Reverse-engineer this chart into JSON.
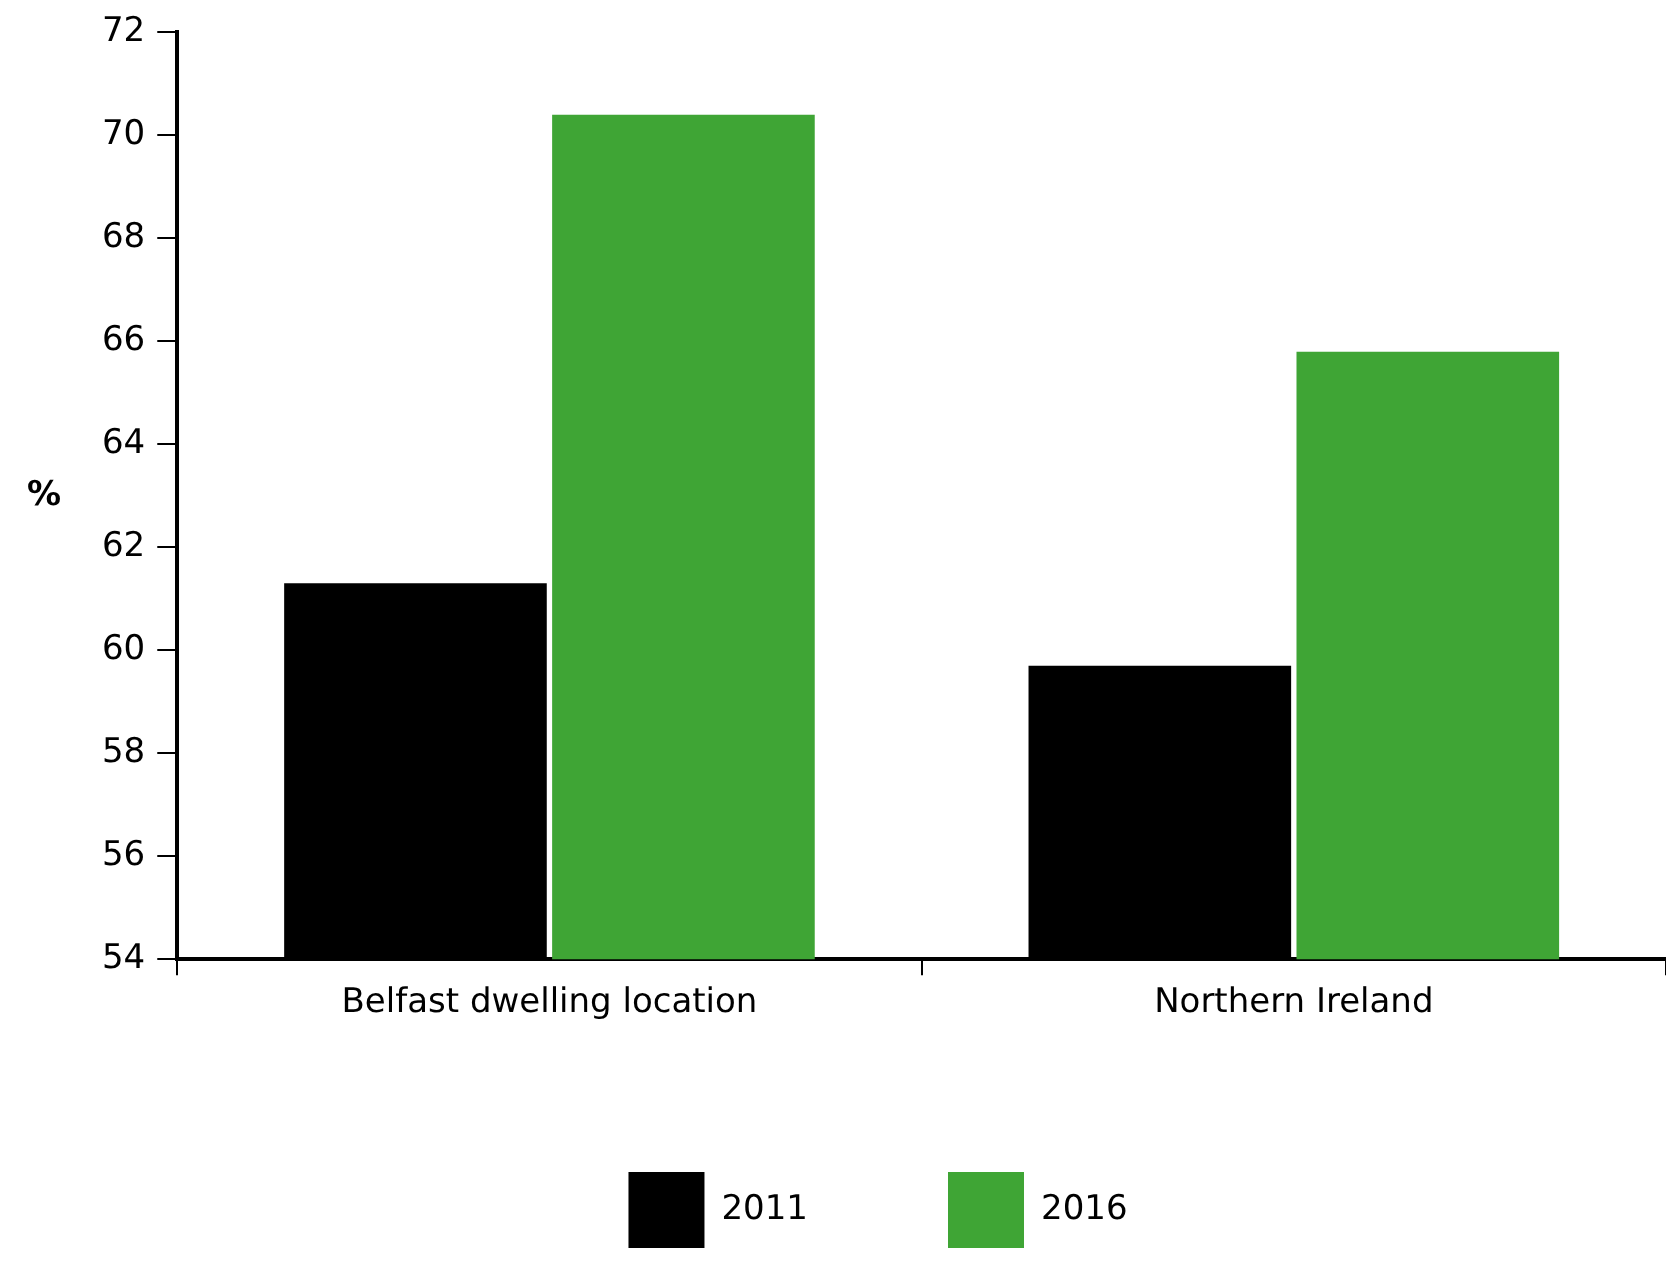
{
  "chart_data": {
    "type": "bar",
    "ylabel": "%",
    "categories": [
      "Belfast dwelling location",
      "Northern Ireland"
    ],
    "series": [
      {
        "name": "2011",
        "color": "#000000",
        "values": [
          61.3,
          59.7
        ]
      },
      {
        "name": "2016",
        "color": "#3fa535",
        "values": [
          70.4,
          65.8
        ]
      }
    ],
    "ylim": [
      54,
      72
    ],
    "yticks": [
      54,
      56,
      58,
      60,
      62,
      64,
      66,
      68,
      70,
      72
    ],
    "grid": false,
    "legend": "bottom"
  }
}
